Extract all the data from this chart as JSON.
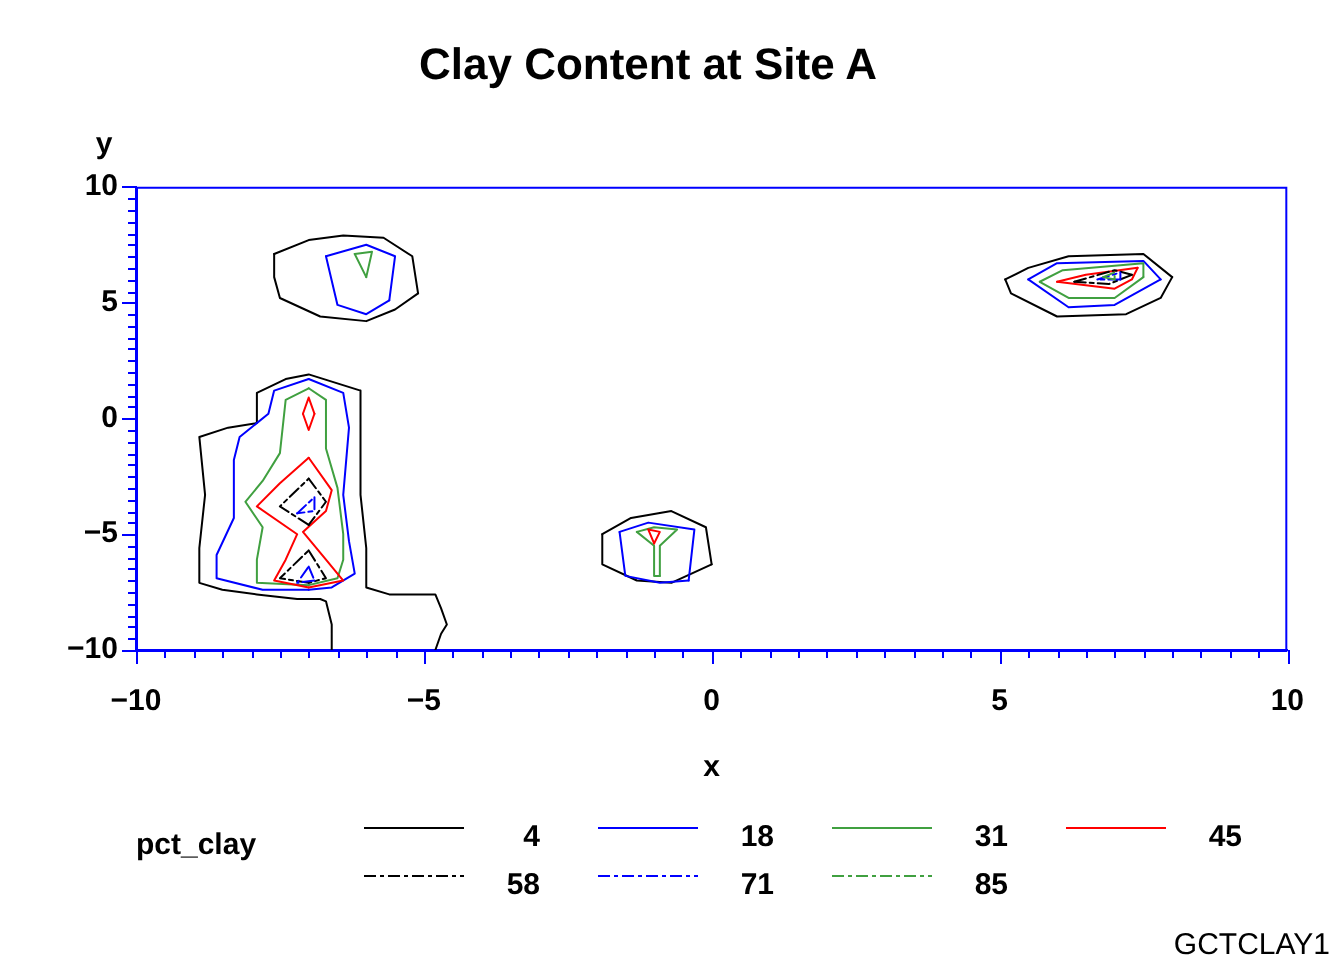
{
  "chart_data": {
    "type": "line",
    "title": "Clay Content at Site A",
    "xlabel": "x",
    "ylabel": "y",
    "legend_title": "pct_clay",
    "legend": "bottom",
    "marker": "none",
    "annotations": [
      "GCTCLAY1"
    ],
    "xlim": [
      -10,
      10
    ],
    "ylim": [
      -10,
      10
    ],
    "xticks": [
      {
        "value": -10,
        "label": "−10"
      },
      {
        "value": -9.5,
        "label": null
      },
      {
        "value": -9,
        "label": null
      },
      {
        "value": -8.5,
        "label": null
      },
      {
        "value": -8,
        "label": null
      },
      {
        "value": -7.5,
        "label": null
      },
      {
        "value": -7,
        "label": null
      },
      {
        "value": -6.5,
        "label": null
      },
      {
        "value": -6,
        "label": null
      },
      {
        "value": -5.5,
        "label": null
      },
      {
        "value": -5,
        "label": "−5"
      },
      {
        "value": -4.5,
        "label": null
      },
      {
        "value": -4,
        "label": null
      },
      {
        "value": -3.5,
        "label": null
      },
      {
        "value": -3,
        "label": null
      },
      {
        "value": -2.5,
        "label": null
      },
      {
        "value": -2,
        "label": null
      },
      {
        "value": -1.5,
        "label": null
      },
      {
        "value": -1,
        "label": null
      },
      {
        "value": -0.5,
        "label": null
      },
      0,
      {
        "value": 0.5,
        "label": null
      },
      {
        "value": 1,
        "label": null
      },
      {
        "value": 1.5,
        "label": null
      },
      {
        "value": 2,
        "label": null
      },
      {
        "value": 2.5,
        "label": null
      },
      {
        "value": 3,
        "label": null
      },
      {
        "value": 3.5,
        "label": null
      },
      {
        "value": 4,
        "label": null
      },
      {
        "value": 4.5,
        "label": null
      },
      5,
      {
        "value": 5.5,
        "label": null
      },
      {
        "value": 6,
        "label": null
      },
      {
        "value": 6.5,
        "label": null
      },
      {
        "value": 7,
        "label": null
      },
      {
        "value": 7.5,
        "label": null
      },
      {
        "value": 8,
        "label": null
      },
      {
        "value": 8.5,
        "label": null
      },
      {
        "value": 9,
        "label": null
      },
      {
        "value": 9.5,
        "label": null
      },
      10
    ],
    "yticks": [
      {
        "value": -10,
        "label": "−10"
      },
      {
        "value": -9.5,
        "label": null
      },
      {
        "value": -9,
        "label": null
      },
      {
        "value": -8.5,
        "label": null
      },
      {
        "value": -8,
        "label": null
      },
      {
        "value": -7.5,
        "label": null
      },
      {
        "value": -7,
        "label": null
      },
      {
        "value": -6.5,
        "label": null
      },
      {
        "value": -6,
        "label": null
      },
      {
        "value": -5.5,
        "label": null
      },
      {
        "value": -5,
        "label": "−5"
      },
      {
        "value": -4.5,
        "label": null
      },
      {
        "value": -4,
        "label": null
      },
      {
        "value": -3.5,
        "label": null
      },
      {
        "value": -3,
        "label": null
      },
      {
        "value": -2.5,
        "label": null
      },
      {
        "value": -2,
        "label": null
      },
      {
        "value": -1.5,
        "label": null
      },
      {
        "value": -1,
        "label": null
      },
      {
        "value": -0.5,
        "label": null
      },
      0,
      {
        "value": 0.5,
        "label": null
      },
      {
        "value": 1,
        "label": null
      },
      {
        "value": 1.5,
        "label": null
      },
      {
        "value": 2,
        "label": null
      },
      {
        "value": 2.5,
        "label": null
      },
      {
        "value": 3,
        "label": null
      },
      {
        "value": 3.5,
        "label": null
      },
      {
        "value": 4,
        "label": null
      },
      {
        "value": 4.5,
        "label": null
      },
      5,
      {
        "value": 5.5,
        "label": null
      },
      {
        "value": 6,
        "label": null
      },
      {
        "value": 6.5,
        "label": null
      },
      {
        "value": 7,
        "label": null
      },
      {
        "value": 7.5,
        "label": null
      },
      {
        "value": 8,
        "label": null
      },
      {
        "value": 8.5,
        "label": null
      },
      {
        "value": 9,
        "label": null
      },
      {
        "value": 9.5,
        "label": null
      },
      10
    ],
    "series": [
      {
        "name": "4",
        "color": "#000000",
        "line_style": "solid",
        "x": [
          -6.6,
          -6.6,
          -6.7,
          -6.8,
          -7.2,
          -7.9,
          -8.5,
          -8.9,
          -8.9,
          -8.8,
          -8.9,
          -8.4,
          -7.9,
          -7.9,
          -7.4,
          -7.0,
          -6.1,
          -6.1,
          -6.0,
          -6.0,
          -5.6,
          -4.8,
          -4.7,
          -4.6,
          -4.7,
          -4.8,
          null,
          -7.6,
          -7.0,
          -6.4,
          -5.7,
          -5.2,
          -5.1,
          null,
          -5.1,
          -5.5,
          -6.0,
          -6.8,
          -7.5,
          -7.6,
          -7.6,
          null,
          -1.9,
          -1.4,
          -0.7,
          -0.1,
          0.0,
          null,
          0.0,
          -0.7,
          -1.3,
          -1.9,
          -1.9,
          null,
          5.1,
          5.5,
          6.2,
          7.5,
          8.0,
          null,
          8.0,
          7.8,
          7.2,
          6.0,
          5.2,
          5.1
        ],
        "values": [
          -10,
          -8.9,
          -7.9,
          -7.8,
          -7.8,
          -7.6,
          -7.4,
          -7.1,
          -5.6,
          -3.3,
          -0.8,
          -0.4,
          -0.2,
          1.1,
          1.7,
          1.9,
          1.2,
          -3.3,
          -5.6,
          -7.3,
          -7.6,
          -7.6,
          -8.2,
          -8.9,
          -9.3,
          -10,
          null,
          7.1,
          7.7,
          7.9,
          7.8,
          7.0,
          5.4,
          null,
          5.4,
          4.7,
          4.2,
          4.4,
          5.2,
          6.1,
          7.1,
          null,
          -5.0,
          -4.3,
          -4.0,
          -4.7,
          -6.3,
          null,
          -6.3,
          -7.1,
          -7.0,
          -6.3,
          -5.0,
          null,
          6.0,
          6.5,
          7.0,
          7.1,
          6.1,
          null,
          6.1,
          5.2,
          4.5,
          4.4,
          5.4,
          6.0
        ]
      },
      {
        "name": "18",
        "color": "#0000ff",
        "line_style": "solid",
        "x": [
          -7.0,
          -6.4,
          -6.3,
          -6.4,
          -6.3,
          -6.2,
          -6.6,
          -7.0,
          null,
          -7.0,
          -7.8,
          -8.6,
          -8.6,
          -8.3,
          -8.3,
          -8.2,
          -7.7,
          -7.6,
          -7.0,
          null,
          -6.7,
          -6.0,
          -5.5,
          -5.6,
          null,
          -5.6,
          -6.0,
          -6.5,
          -6.7,
          null,
          -1.6,
          -1.1,
          -0.3,
          -0.4,
          null,
          -0.4,
          -0.9,
          -1.5,
          -1.6,
          null,
          5.5,
          6.0,
          7.5,
          7.8,
          null,
          7.8,
          7.0,
          6.2,
          5.5
        ],
        "values": [
          1.7,
          1.1,
          -0.4,
          -3.3,
          -5.3,
          -6.7,
          -7.3,
          -7.4,
          null,
          -7.4,
          -7.4,
          -6.9,
          -5.9,
          -4.3,
          -1.8,
          -0.8,
          0.2,
          1.2,
          1.7,
          null,
          7.0,
          7.5,
          7.0,
          5.1,
          null,
          5.1,
          4.5,
          4.9,
          7.0,
          null,
          -4.9,
          -4.5,
          -4.8,
          -7.0,
          null,
          -7.0,
          -7.1,
          -6.8,
          -4.9,
          null,
          6.0,
          6.7,
          6.8,
          6.0,
          null,
          6.0,
          4.9,
          4.8,
          6.0
        ]
      },
      {
        "name": "31",
        "color": "#40a040",
        "line_style": "solid",
        "x": [
          -7.0,
          -6.7,
          -6.7,
          -6.5,
          -6.4,
          -6.4,
          -6.5,
          -7.0,
          null,
          -7.0,
          -7.9,
          -7.9,
          -7.8,
          -8.1,
          -7.8,
          -7.5,
          -7.4,
          -7.0,
          null,
          -6.2,
          -5.9,
          -6.0,
          null,
          -6.0,
          -6.2,
          null,
          -1.3,
          -1.0,
          -0.6,
          -0.9,
          -0.9,
          null,
          -0.9,
          -1.0,
          -1.0,
          -1.3,
          null,
          5.7,
          6.1,
          7.5,
          7.5,
          null,
          7.5,
          7.0,
          6.2,
          5.7
        ],
        "values": [
          1.3,
          0.8,
          -1.3,
          -3.0,
          -5.0,
          -6.1,
          -6.9,
          -7.2,
          null,
          -7.2,
          -7.1,
          -6.1,
          -4.7,
          -3.6,
          -2.7,
          -1.5,
          0.8,
          1.3,
          null,
          7.1,
          7.2,
          6.1,
          null,
          6.1,
          7.1,
          null,
          -4.9,
          -4.7,
          -4.8,
          -5.5,
          -6.8,
          null,
          -6.8,
          -6.8,
          -5.5,
          -4.9,
          null,
          5.9,
          6.4,
          6.7,
          6.1,
          null,
          6.1,
          5.2,
          5.2,
          5.9
        ]
      },
      {
        "name": "45",
        "color": "#ff0000",
        "line_style": "solid",
        "x": [
          -7.0,
          -6.6,
          -6.7,
          -7.1,
          -6.7,
          -6.4,
          -7.0,
          null,
          -7.0,
          -7.6,
          -7.4,
          -7.2,
          -7.9,
          -7.5,
          -7.0,
          null,
          -7.1,
          -7.0,
          -6.9,
          null,
          -7.1,
          -7.0,
          -6.9,
          null,
          -1.1,
          -0.9,
          -1.0,
          null,
          -1.0,
          -1.1,
          null,
          6.0,
          6.5,
          7.4,
          null,
          7.4,
          7.3,
          7.0,
          6.0
        ],
        "values": [
          -1.7,
          -3.1,
          -4.0,
          -4.9,
          -6.1,
          -7.0,
          -7.3,
          null,
          -7.3,
          -7.0,
          -6.1,
          -5.0,
          -3.8,
          -2.8,
          -1.7,
          null,
          0.2,
          0.9,
          0.2,
          null,
          0.2,
          -0.5,
          0.2,
          null,
          -4.8,
          -4.9,
          -5.4,
          null,
          -5.4,
          -4.8,
          null,
          5.9,
          6.2,
          6.5,
          null,
          6.5,
          6.0,
          5.6,
          5.9
        ]
      },
      {
        "name": "58",
        "color": "#000000",
        "line_style": "dashed",
        "x": [
          -7.0,
          -6.7,
          -7.0,
          null,
          -7.0,
          -7.5,
          -7.0,
          null,
          -7.0,
          -6.7,
          -7.0,
          null,
          -7.0,
          -7.5,
          -7.0,
          null,
          6.3,
          7.0,
          7.3,
          null,
          7.3,
          6.9,
          6.3
        ],
        "values": [
          -2.6,
          -3.6,
          -4.6,
          null,
          -4.6,
          -3.8,
          -2.6,
          null,
          -5.7,
          -6.9,
          -7.1,
          null,
          -7.1,
          -6.9,
          -5.7,
          null,
          5.9,
          6.4,
          6.2,
          null,
          6.2,
          5.8,
          5.9
        ]
      },
      {
        "name": "71",
        "color": "#0000ff",
        "line_style": "dashed",
        "x": [
          -6.9,
          -6.9,
          -7.2,
          null,
          -7.2,
          -6.9,
          null,
          -7.0,
          -6.9,
          null,
          -6.9,
          -7.2,
          -7.0,
          null,
          6.7,
          7.1,
          7.1,
          null,
          7.1,
          6.7
        ],
        "values": [
          -3.4,
          -4.0,
          -4.1,
          null,
          -4.1,
          -3.4,
          null,
          -6.4,
          -7.0,
          null,
          -7.0,
          -7.1,
          -6.4,
          null,
          6.0,
          6.3,
          6.0,
          null,
          6.0,
          6.0
        ]
      },
      {
        "name": "85",
        "color": "#40a040",
        "line_style": "dashed",
        "x": [
          6.8,
          7.0,
          7.0,
          null,
          7.0,
          6.8
        ],
        "values": [
          6.1,
          6.3,
          6.0,
          null,
          6.0,
          6.1
        ]
      }
    ]
  }
}
